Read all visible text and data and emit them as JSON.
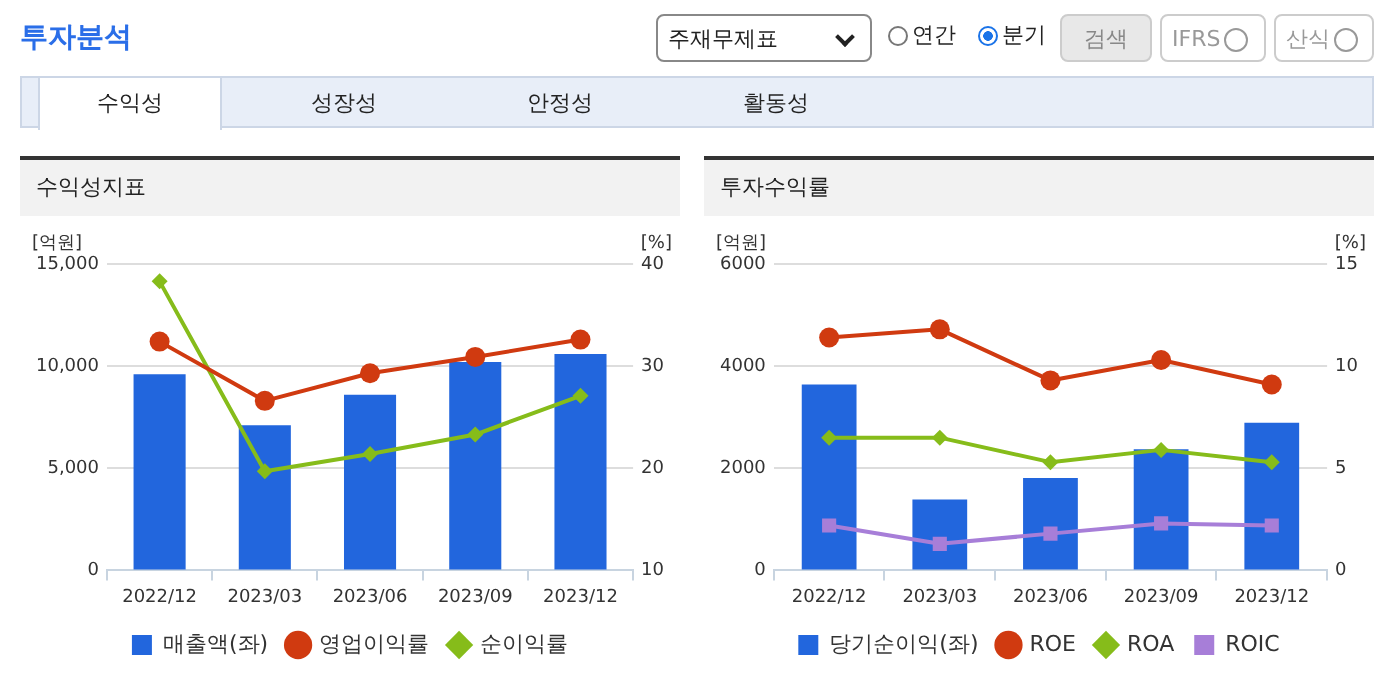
{
  "chart_data": [
    {
      "type": "bar",
      "title": "수익성지표",
      "ylabel": "[억원]",
      "y2label": "[%]",
      "annotations": [
        "투자분석",
        "주재무제표",
        "연간",
        "분기",
        "검색",
        "IFRS",
        "산식",
        "수익성",
        "성장성",
        "안정성",
        "활동성"
      ],
      "categories": [
        "2022/12",
        "2023/03",
        "2023/06",
        "2023/09",
        "2023/12"
      ],
      "series": [
        {
          "name": "매출액(좌)",
          "color": "#2266dd",
          "values": [
            9600,
            7100,
            8600,
            10200,
            10600
          ]
        },
        {
          "name": "영업이익률",
          "type": "line",
          "axis": "y2",
          "marker": "circle",
          "color": "#d03a10",
          "values": [
            32.4,
            26.6,
            29.3,
            30.9,
            32.6
          ]
        },
        {
          "name": "순이익률",
          "type": "line",
          "axis": "y2",
          "marker": "diamond",
          "color": "#86bc1a",
          "values": [
            38.3,
            19.7,
            21.4,
            23.3,
            27.1
          ]
        }
      ],
      "ylim": [
        0,
        15000
      ],
      "yticks": [
        0,
        {
          "value": 5000,
          "label": "5,000"
        },
        {
          "value": 10000,
          "label": "10,000"
        },
        {
          "value": 15000,
          "label": "15,000"
        }
      ],
      "y2lim": [
        10,
        40
      ],
      "y2ticks": [
        10,
        20,
        30,
        40
      ],
      "grid": "y",
      "legend": "bottom"
    },
    {
      "type": "bar",
      "title": "투자수익률",
      "ylabel": "[억원]",
      "y2label": "[%]",
      "categories": [
        "2022/12",
        "2023/03",
        "2023/06",
        "2023/09",
        "2023/12"
      ],
      "series": [
        {
          "name": "당기순이익(좌)",
          "color": "#2266dd",
          "values": [
            3640,
            1390,
            1810,
            2370,
            2890
          ]
        },
        {
          "name": "ROE",
          "type": "line",
          "axis": "y2",
          "marker": "circle",
          "color": "#d03a10",
          "values": [
            11.4,
            11.8,
            9.3,
            10.3,
            9.1
          ]
        },
        {
          "name": "ROA",
          "type": "line",
          "axis": "y2",
          "marker": "diamond",
          "color": "#86bc1a",
          "values": [
            6.5,
            6.5,
            5.3,
            5.9,
            5.3
          ]
        },
        {
          "name": "ROIC",
          "type": "line",
          "axis": "y2",
          "marker": "square",
          "color": "#a77ed8",
          "values": [
            2.2,
            1.3,
            1.8,
            2.3,
            2.2
          ]
        }
      ],
      "ylim": [
        0,
        6000
      ],
      "yticks": [
        0,
        2000,
        4000,
        6000
      ],
      "y2lim": [
        0,
        15
      ],
      "y2ticks": [
        0,
        5,
        10,
        15
      ],
      "grid": "y",
      "legend": "bottom"
    }
  ]
}
